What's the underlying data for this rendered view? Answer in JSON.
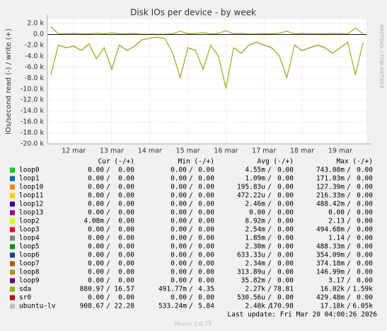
{
  "chart_data": {
    "type": "line",
    "title": "Disk IOs per device - by week",
    "y_label": "IOs/second read (-) / write (+)",
    "side_label": "RRDTOOL / TOBI OETIKER",
    "ylim": [
      -20000,
      2800
    ],
    "yticks": [
      {
        "value": 2000,
        "label": "2.0 k"
      },
      {
        "value": 0,
        "label": "0.0"
      },
      {
        "value": -2000,
        "label": "-2.0 k"
      },
      {
        "value": -4000,
        "label": "-4.0 k"
      },
      {
        "value": -6000,
        "label": "-6.0 k"
      },
      {
        "value": -8000,
        "label": "-8.0 k"
      },
      {
        "value": -10000,
        "label": "-10.0 k"
      },
      {
        "value": -12000,
        "label": "-12.0 k"
      },
      {
        "value": -14000,
        "label": "-14.0 k"
      },
      {
        "value": -16000,
        "label": "-16.0 k"
      },
      {
        "value": -18000,
        "label": "-18.0 k"
      },
      {
        "value": -20000,
        "label": "-20.0 k"
      }
    ],
    "xlim": [
      11.31,
      19.69
    ],
    "xticks": [
      {
        "value": 12,
        "label": "12 mar"
      },
      {
        "value": 13,
        "label": "13 mar"
      },
      {
        "value": 14,
        "label": "14 mar"
      },
      {
        "value": 15,
        "label": "15 mar"
      },
      {
        "value": 16,
        "label": "16 mar"
      },
      {
        "value": 17,
        "label": "17 mar"
      },
      {
        "value": 18,
        "label": "18 mar"
      },
      {
        "value": 19,
        "label": "19 mar"
      }
    ],
    "grid": true,
    "x": [
      11.4,
      11.6,
      11.8,
      12.0,
      12.2,
      12.4,
      12.6,
      12.8,
      13.0,
      13.2,
      13.4,
      13.6,
      13.8,
      14.0,
      14.2,
      14.4,
      14.6,
      14.8,
      15.0,
      15.2,
      15.4,
      15.6,
      15.8,
      16.0,
      16.2,
      16.4,
      16.6,
      16.8,
      17.0,
      17.2,
      17.4,
      17.6,
      17.8,
      18.0,
      18.2,
      18.4,
      18.6,
      18.8,
      19.0,
      19.2,
      19.4,
      19.6
    ],
    "series": [
      {
        "name": "ubuntu-lv",
        "color": "#bebebe",
        "read": [
          -7500,
          -2000,
          -2500,
          -2200,
          -3000,
          -1800,
          -4500,
          -2500,
          -6500,
          -2000,
          -3000,
          -2200,
          -1000,
          -700,
          -500,
          -800,
          -3500,
          -8000,
          -2500,
          -3000,
          -6500,
          -2000,
          -4000,
          -10000,
          -2500,
          -3500,
          -2000,
          -1500,
          -2000,
          -2500,
          -4000,
          -8000,
          -2000,
          -3000,
          -2500,
          -2000,
          -2500,
          -3500,
          -2500,
          -1500,
          -7500,
          -1500
        ],
        "write": [
          1500,
          100,
          150,
          200,
          150,
          100,
          250,
          150,
          300,
          100,
          150,
          200,
          50,
          50,
          50,
          50,
          150,
          600,
          150,
          200,
          400,
          100,
          200,
          700,
          150,
          200,
          100,
          100,
          150,
          150,
          250,
          600,
          100,
          200,
          150,
          100,
          150,
          200,
          150,
          100,
          1200,
          100
        ]
      },
      {
        "name": "sda",
        "color": "#8fb300",
        "read": [
          -7300,
          -1900,
          -2400,
          -2100,
          -2900,
          -1700,
          -4400,
          -2400,
          -6300,
          -1900,
          -2900,
          -2100,
          -950,
          -650,
          -450,
          -750,
          -3400,
          -7800,
          -2400,
          -2900,
          -6300,
          -1900,
          -3900,
          -9700,
          -2400,
          -3400,
          -1900,
          -1400,
          -1900,
          -2400,
          -3900,
          -7800,
          -1900,
          -2900,
          -2400,
          -1900,
          -2400,
          -3400,
          -2400,
          -1400,
          -7300,
          -1400
        ],
        "write": [
          1400,
          90,
          140,
          190,
          140,
          90,
          240,
          140,
          290,
          90,
          140,
          190,
          45,
          45,
          45,
          45,
          140,
          580,
          140,
          190,
          380,
          90,
          190,
          680,
          140,
          190,
          90,
          90,
          140,
          140,
          240,
          580,
          90,
          190,
          140,
          90,
          140,
          190,
          140,
          90,
          1150,
          90
        ]
      }
    ],
    "legend": {
      "headers": [
        "Cur (-/+)",
        "Min (-/+)",
        "Avg (-/+)",
        "Max (-/+)"
      ],
      "separator": "/",
      "rows": [
        {
          "name": "loop0",
          "color": "#00cc00",
          "cur": [
            "0.00",
            "0.00"
          ],
          "min": [
            "0.00",
            "0.00"
          ],
          "avg": [
            "4.55m",
            "0.00"
          ],
          "max": [
            "743.08m",
            "0.00"
          ]
        },
        {
          "name": "loop1",
          "color": "#0066b3",
          "cur": [
            "0.00",
            "0.00"
          ],
          "min": [
            "0.00",
            "0.00"
          ],
          "avg": [
            "1.09m",
            "0.00"
          ],
          "max": [
            "171.03m",
            "0.00"
          ]
        },
        {
          "name": "loop10",
          "color": "#ff8000",
          "cur": [
            "0.00",
            "0.00"
          ],
          "min": [
            "0.00",
            "0.00"
          ],
          "avg": [
            "195.83u",
            "0.00"
          ],
          "max": [
            "127.39m",
            "0.00"
          ]
        },
        {
          "name": "loop11",
          "color": "#ffcc00",
          "cur": [
            "0.00",
            "0.00"
          ],
          "min": [
            "0.00",
            "0.00"
          ],
          "avg": [
            "472.22u",
            "0.00"
          ],
          "max": [
            "216.33m",
            "0.00"
          ]
        },
        {
          "name": "loop12",
          "color": "#330099",
          "cur": [
            "0.00",
            "0.00"
          ],
          "min": [
            "0.00",
            "0.00"
          ],
          "avg": [
            "2.46m",
            "0.00"
          ],
          "max": [
            "488.42m",
            "0.00"
          ]
        },
        {
          "name": "loop13",
          "color": "#990099",
          "cur": [
            "0.00",
            "0.00"
          ],
          "min": [
            "0.00",
            "0.00"
          ],
          "avg": [
            "0.00",
            "0.00"
          ],
          "max": [
            "0.00",
            "0.00"
          ]
        },
        {
          "name": "loop2",
          "color": "#ccff00",
          "cur": [
            "4.08m",
            "0.00"
          ],
          "min": [
            "0.00",
            "0.00"
          ],
          "avg": [
            "8.92m",
            "0.00"
          ],
          "max": [
            "2.13",
            "0.00"
          ]
        },
        {
          "name": "loop3",
          "color": "#ff0000",
          "cur": [
            "0.00",
            "0.00"
          ],
          "min": [
            "0.00",
            "0.00"
          ],
          "avg": [
            "2.54m",
            "0.00"
          ],
          "max": [
            "494.68m",
            "0.00"
          ]
        },
        {
          "name": "loop4",
          "color": "#808080",
          "cur": [
            "0.00",
            "0.00"
          ],
          "min": [
            "0.00",
            "0.00"
          ],
          "avg": [
            "1.85m",
            "0.00"
          ],
          "max": [
            "1.14",
            "0.00"
          ]
        },
        {
          "name": "loop5",
          "color": "#008f00",
          "cur": [
            "0.00",
            "0.00"
          ],
          "min": [
            "0.00",
            "0.00"
          ],
          "avg": [
            "2.30m",
            "0.00"
          ],
          "max": [
            "488.33m",
            "0.00"
          ]
        },
        {
          "name": "loop6",
          "color": "#00487d",
          "cur": [
            "0.00",
            "0.00"
          ],
          "min": [
            "0.00",
            "0.00"
          ],
          "avg": [
            "633.33u",
            "0.00"
          ],
          "max": [
            "354.09m",
            "0.00"
          ]
        },
        {
          "name": "loop7",
          "color": "#b35a00",
          "cur": [
            "0.00",
            "0.00"
          ],
          "min": [
            "0.00",
            "0.00"
          ],
          "avg": [
            "2.34m",
            "0.00"
          ],
          "max": [
            "374.18m",
            "0.00"
          ]
        },
        {
          "name": "loop8",
          "color": "#b38f00",
          "cur": [
            "0.00",
            "0.00"
          ],
          "min": [
            "0.00",
            "0.00"
          ],
          "avg": [
            "313.89u",
            "0.00"
          ],
          "max": [
            "146.99m",
            "0.00"
          ]
        },
        {
          "name": "loop9",
          "color": "#6b006b",
          "cur": [
            "0.00",
            "0.00"
          ],
          "min": [
            "0.00",
            "0.00"
          ],
          "avg": [
            "35.82m",
            "0.00"
          ],
          "max": [
            "3.17",
            "0.00"
          ]
        },
        {
          "name": "sda",
          "color": "#8fb300",
          "cur": [
            "880.97",
            "16.57"
          ],
          "min": [
            "491.77m",
            "4.35"
          ],
          "avg": [
            "2.27k",
            "78.81"
          ],
          "max": [
            "16.02k",
            "1.59k"
          ]
        },
        {
          "name": "sr0",
          "color": "#b30000",
          "cur": [
            "0.00",
            "0.00"
          ],
          "min": [
            "0.00",
            "0.00"
          ],
          "avg": [
            "530.56u",
            "0.00"
          ],
          "max": [
            "429.48m",
            "0.00"
          ]
        },
        {
          "name": "ubuntu-lv",
          "color": "#bebebe",
          "cur": [
            "908.67",
            "22.28"
          ],
          "min": [
            "533.24m",
            "5.84"
          ],
          "avg": [
            "2.48k",
            "170.98"
          ],
          "max": [
            "17.18k",
            "6.05k"
          ]
        }
      ]
    },
    "last_update": "Last update: Fri Mar 20 04:00:26 2026",
    "footer": "Munin 2.0.75"
  }
}
